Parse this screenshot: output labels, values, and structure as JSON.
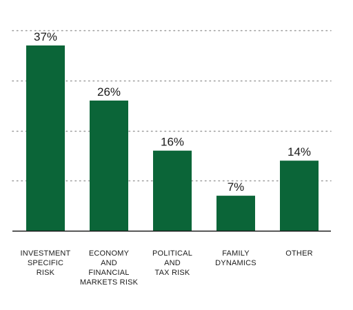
{
  "chart_data": {
    "type": "bar",
    "categories": [
      [
        "INVESTMENT",
        "SPECIFIC",
        "RISK"
      ],
      [
        "ECONOMY",
        "AND",
        "FINANCIAL",
        "MARKETS RISK"
      ],
      [
        "POLITICAL",
        "AND",
        "TAX RISK"
      ],
      [
        "FAMILY",
        "DYNAMICS"
      ],
      [
        "OTHER"
      ]
    ],
    "values": [
      37,
      26,
      16,
      7,
      14
    ],
    "value_labels": [
      "37%",
      "26%",
      "16%",
      "7%",
      "14%"
    ],
    "ylim": [
      0,
      40
    ],
    "grid": true,
    "grid_style": "dotted",
    "bar_color": "#0b6538",
    "grid_color": "#9a9a9a",
    "axis_color": "#1a1a1a"
  }
}
